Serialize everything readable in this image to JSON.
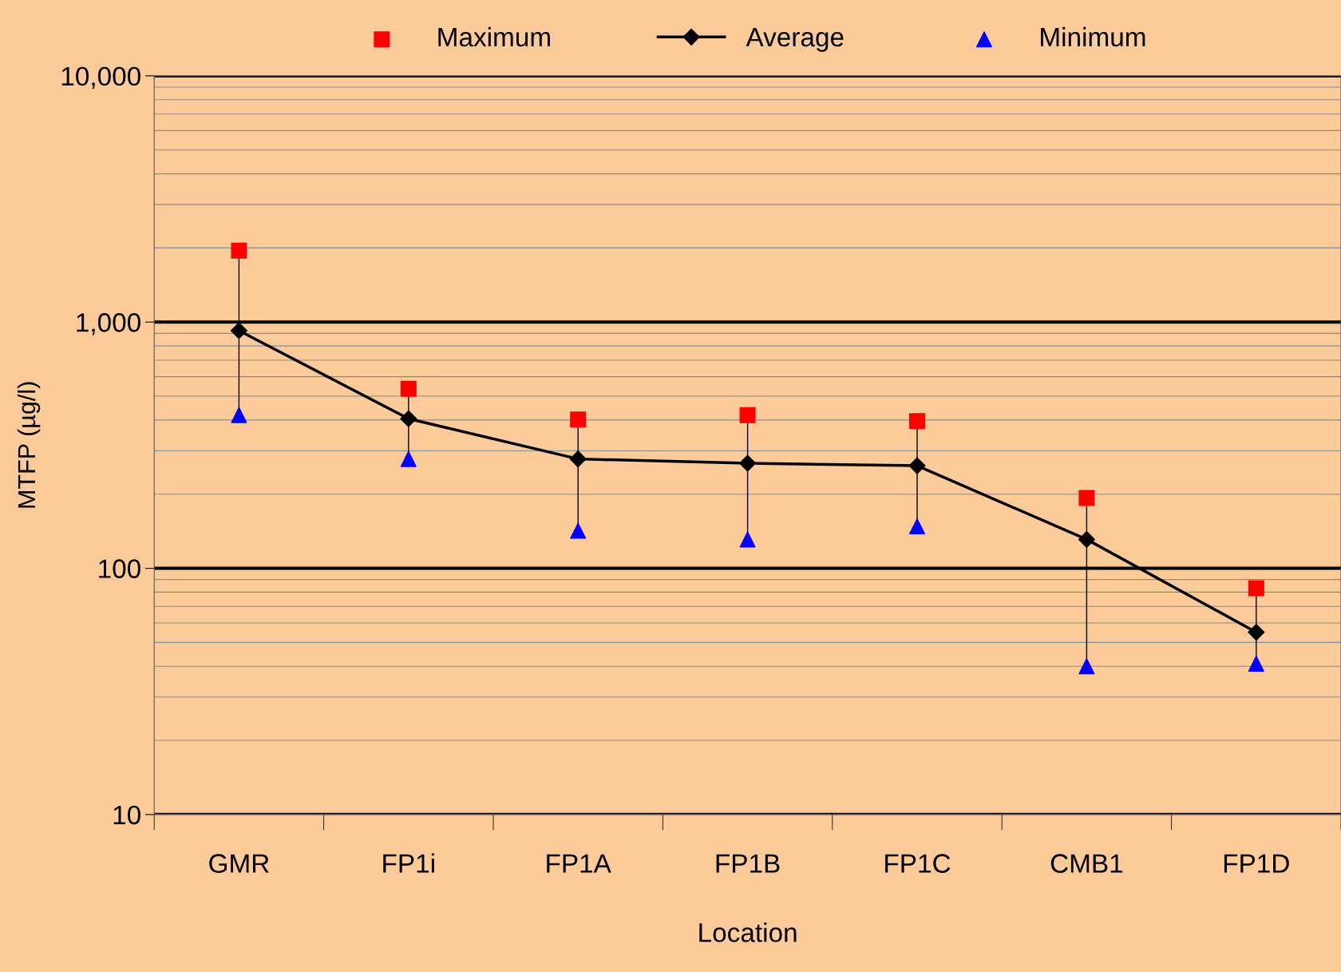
{
  "chart_data": {
    "type": "line",
    "xlabel": "Location",
    "ylabel": "MTFP (µg/l)",
    "categories": [
      "GMR",
      "FP1i",
      "FP1A",
      "FP1B",
      "FP1C",
      "CMB1",
      "FP1D"
    ],
    "series": [
      {
        "name": "Maximum",
        "type": "scatter",
        "marker": "square",
        "color": "#ff0000",
        "values": [
          1950,
          536,
          402,
          419,
          396,
          193,
          83
        ]
      },
      {
        "name": "Average",
        "marker": "diamond",
        "color": "#000000",
        "values": [
          923,
          405,
          278,
          267,
          261,
          131,
          55
        ]
      },
      {
        "name": "Minimum",
        "type": "scatter",
        "marker": "triangle",
        "color": "#0000ff",
        "values": [
          419,
          278,
          142,
          131,
          148,
          40,
          41
        ]
      }
    ],
    "log": "y",
    "ylim": [
      10,
      10000
    ],
    "yticks": [
      {
        "value": 10,
        "label": "10"
      },
      {
        "value": 100,
        "label": "100"
      },
      {
        "value": 1000,
        "label": "1,000"
      },
      {
        "value": 10000,
        "label": "10,000"
      }
    ],
    "grid": "y",
    "legend": "top"
  }
}
